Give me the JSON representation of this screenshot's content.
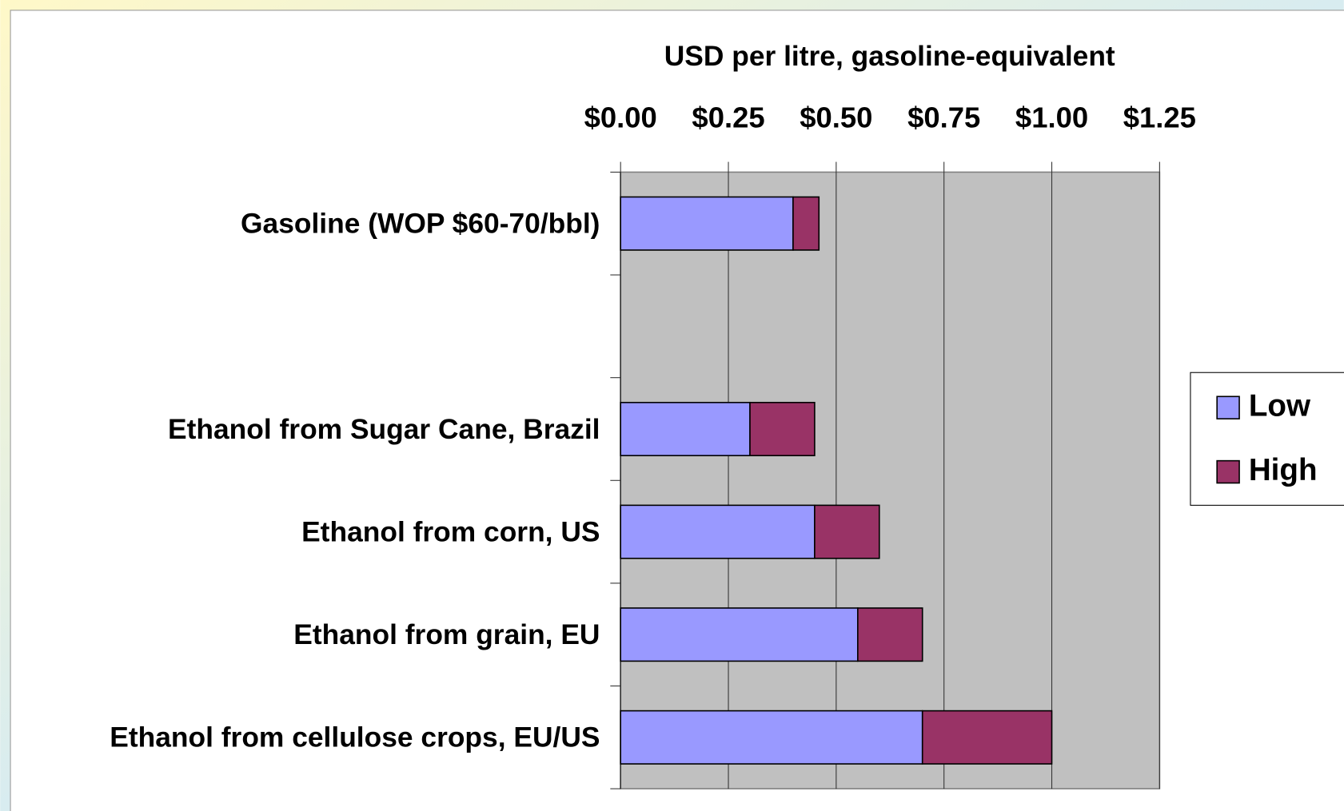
{
  "chart_data": {
    "type": "stacked_barh",
    "x_label": "USD per litre, gasoline-equivalent",
    "categories": [
      "Gasoline (WOP $60-70/bbl)",
      null,
      "Ethanol from Sugar Cane, Brazil",
      "Ethanol from corn, US",
      "Ethanol from grain, EU",
      "Ethanol from cellulose crops, EU/US"
    ],
    "series": [
      {
        "name": "Low",
        "color": "#9999ff",
        "values": [
          0.4,
          null,
          0.3,
          0.45,
          0.55,
          0.7
        ]
      },
      {
        "name": "High",
        "color": "#993366",
        "values": [
          0.06,
          null,
          0.15,
          0.15,
          0.15,
          0.3
        ]
      }
    ],
    "xlim": [
      0,
      1.25
    ],
    "xticks": [
      {
        "value": 0,
        "label": "$0.00"
      },
      {
        "value": 0.25,
        "label": "$0.25"
      },
      {
        "value": 0.5,
        "label": "$0.50"
      },
      {
        "value": 0.75,
        "label": "$0.75"
      },
      {
        "value": 1.0,
        "label": "$1.00"
      },
      {
        "value": 1.25,
        "label": "$1.25"
      }
    ],
    "grid": true,
    "legend": "right"
  }
}
